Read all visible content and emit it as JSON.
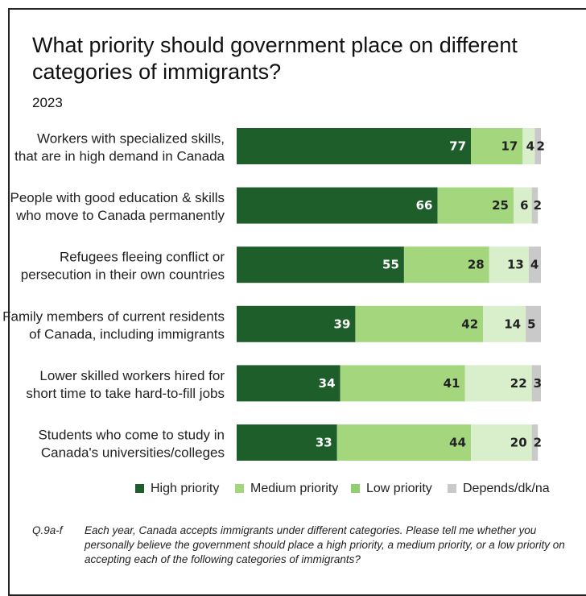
{
  "title": "What priority should government place on different categories of immigrants?",
  "subtitle": "2023",
  "footnote": {
    "label": "Q.9a-f",
    "text": "Each year, Canada accepts immigrants under different categories. Please tell me whether you personally believe the government should place a high priority, a medium priority, or a low priority on accepting each of the following categories of immigrants?"
  },
  "colors": {
    "high": "#1e5e2b",
    "medium": "#a3d67d",
    "low": "#d9efcc",
    "depends": "#c9c9c9",
    "legend_low": "#8fcf72"
  },
  "chart_data": {
    "type": "bar",
    "orientation": "horizontal",
    "stacked": true,
    "xlim": [
      0,
      100
    ],
    "categories": [
      [
        "Workers with specialized skills,",
        "that are in high demand in Canada"
      ],
      [
        "People with good education & skills",
        "who move to Canada permanently"
      ],
      [
        "Refugees fleeing conflict or",
        "persecution in their own countries"
      ],
      [
        "Family members of current residents",
        "of Canada, including immigrants"
      ],
      [
        "Lower skilled workers hired for",
        "short time to take hard-to-fill jobs"
      ],
      [
        "Students who come to study in",
        "Canada's universities/colleges"
      ]
    ],
    "series": [
      {
        "name": "High priority",
        "key": "high",
        "values": [
          77,
          66,
          55,
          39,
          34,
          33
        ]
      },
      {
        "name": "Medium priority",
        "key": "medium",
        "values": [
          17,
          25,
          28,
          42,
          41,
          44
        ]
      },
      {
        "name": "Low priority",
        "key": "low",
        "values": [
          4,
          6,
          13,
          14,
          22,
          20
        ]
      },
      {
        "name": "Depends/dk/na",
        "key": "depends",
        "values": [
          2,
          2,
          4,
          5,
          3,
          2
        ]
      }
    ],
    "legend": "bottom"
  }
}
